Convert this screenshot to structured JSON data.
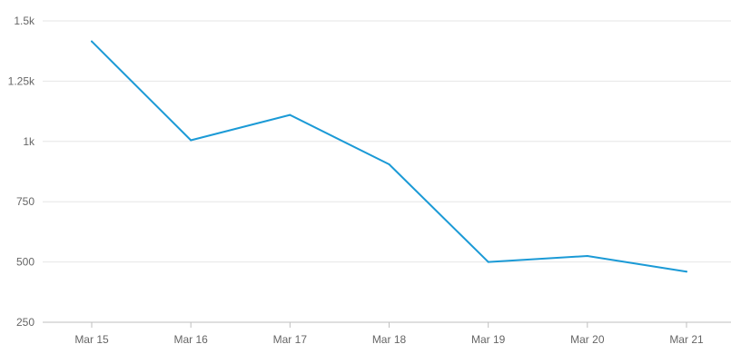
{
  "chart_data": {
    "type": "line",
    "title": "",
    "xlabel": "",
    "ylabel": "",
    "categories": [
      "Mar 15",
      "Mar 16",
      "Mar 17",
      "Mar 18",
      "Mar 19",
      "Mar 20",
      "Mar 21"
    ],
    "series": [
      {
        "values": [
          1415,
          1005,
          1110,
          905,
          500,
          525,
          460
        ],
        "color": "#1b9ad6"
      }
    ],
    "yticks": [
      250,
      500,
      750,
      1000,
      1250,
      1500
    ],
    "ytick_labels": [
      "250",
      "500",
      "750",
      "1k",
      "1.25k",
      "1.5k"
    ],
    "ylim": [
      250,
      1500
    ],
    "grid": true,
    "legend": "none"
  }
}
